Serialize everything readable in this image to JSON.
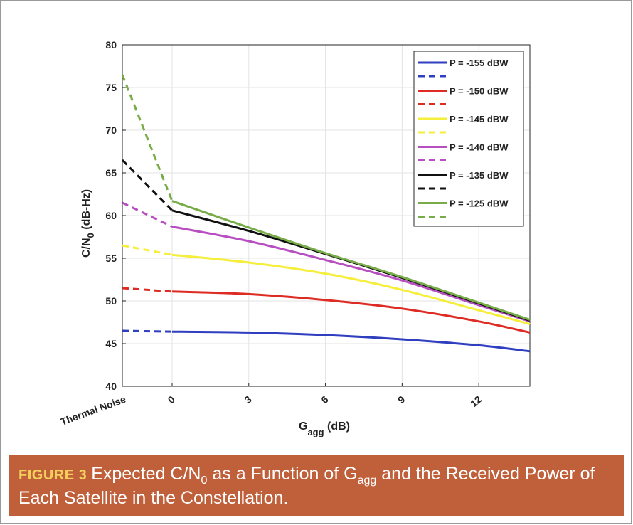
{
  "caption": {
    "figure_label": "FIGURE 3",
    "text_1": "Expected C/N",
    "text_1_sub": "0",
    "text_2": " as a Function of G",
    "text_2_sub": "agg",
    "text_3": " and the Received Power of Each Satellite in the Constellation."
  },
  "chart_data": {
    "type": "line",
    "xlabel": {
      "main": "G",
      "sub": "agg",
      "suffix": " (dB)"
    },
    "ylabel": {
      "main": "C/N",
      "sub": "0",
      "suffix": " (dB-Hz)"
    },
    "x_categories_label": "Thermal Noise",
    "xticks": [
      0,
      3,
      6,
      9,
      12
    ],
    "xlim": [
      0,
      14
    ],
    "ylim": [
      40,
      80
    ],
    "yticks": [
      40,
      45,
      50,
      55,
      60,
      65,
      70,
      75,
      80
    ],
    "grid": true,
    "legend_position": "top-right",
    "series": [
      {
        "name": "P = -155 dBW",
        "color": "#2f3fbf",
        "thermal_noise": 46.5,
        "x": [
          0,
          3,
          6,
          9,
          12,
          14
        ],
        "y": [
          46.4,
          46.3,
          46.0,
          45.5,
          44.8,
          44.1
        ]
      },
      {
        "name": "P = -150 dBW",
        "color": "#de2b23",
        "thermal_noise": 51.5,
        "x": [
          0,
          3,
          6,
          9,
          12,
          14
        ],
        "y": [
          51.1,
          50.8,
          50.1,
          49.1,
          47.6,
          46.3
        ]
      },
      {
        "name": "P = -145 dBW",
        "color": "#f5ee3a",
        "thermal_noise": 56.5,
        "x": [
          0,
          3,
          6,
          9,
          12,
          14
        ],
        "y": [
          55.4,
          54.5,
          53.2,
          51.3,
          48.9,
          47.3
        ]
      },
      {
        "name": "P = -140 dBW",
        "color": "#b74fc1",
        "thermal_noise": 61.5,
        "x": [
          0,
          3,
          6,
          9,
          12,
          14
        ],
        "y": [
          58.7,
          57.0,
          54.8,
          52.4,
          49.5,
          47.6
        ]
      },
      {
        "name": "P = -135 dBW",
        "color": "#111111",
        "thermal_noise": 66.5,
        "x": [
          0,
          3,
          6,
          9,
          12,
          14
        ],
        "y": [
          60.6,
          58.2,
          55.5,
          52.7,
          49.7,
          47.7
        ]
      },
      {
        "name": "P = -125 dBW",
        "color": "#77ac48",
        "thermal_noise": 76.5,
        "x": [
          0,
          3,
          6,
          9,
          12,
          14
        ],
        "y": [
          61.7,
          58.6,
          55.6,
          52.8,
          49.8,
          47.8
        ]
      }
    ]
  }
}
